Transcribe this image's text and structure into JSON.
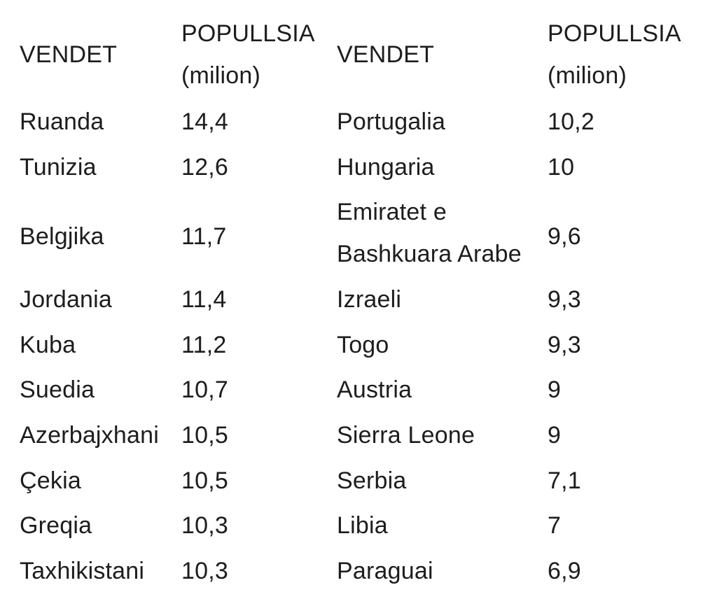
{
  "header": {
    "col_country": "VENDET",
    "col_pop_line1": "POPULLSIA",
    "col_pop_line2": "(milion)"
  },
  "left_rows": [
    {
      "country": "Ruanda",
      "population": "14,4"
    },
    {
      "country": "Tunizia",
      "population": "12,6"
    },
    {
      "country": "Belgjika",
      "population": "11,7"
    },
    {
      "country": "Jordania",
      "population": "11,4"
    },
    {
      "country": "Kuba",
      "population": "11,2"
    },
    {
      "country": "Suedia",
      "population": "10,7"
    },
    {
      "country": "Azerbajxhani",
      "population": "10,5"
    },
    {
      "country": "Çekia",
      "population": "10,5"
    },
    {
      "country": "Greqia",
      "population": "10,3"
    },
    {
      "country": "Taxhikistani",
      "population": "10,3"
    }
  ],
  "right_rows": [
    {
      "country": "Portugalia",
      "population": "10,2"
    },
    {
      "country": "Hungaria",
      "population": "10"
    },
    {
      "country_line1": "Emiratet e",
      "country_line2": "Bashkuara Arabe",
      "population": "9,6"
    },
    {
      "country": "Izraeli",
      "population": "9,3"
    },
    {
      "country": "Togo",
      "population": "9,3"
    },
    {
      "country": "Austria",
      "population": "9"
    },
    {
      "country": "Sierra Leone",
      "population": "9"
    },
    {
      "country": "Serbia",
      "population": "7,1"
    },
    {
      "country": "Libia",
      "population": "7"
    },
    {
      "country": "Paraguai",
      "population": "6,9"
    }
  ]
}
